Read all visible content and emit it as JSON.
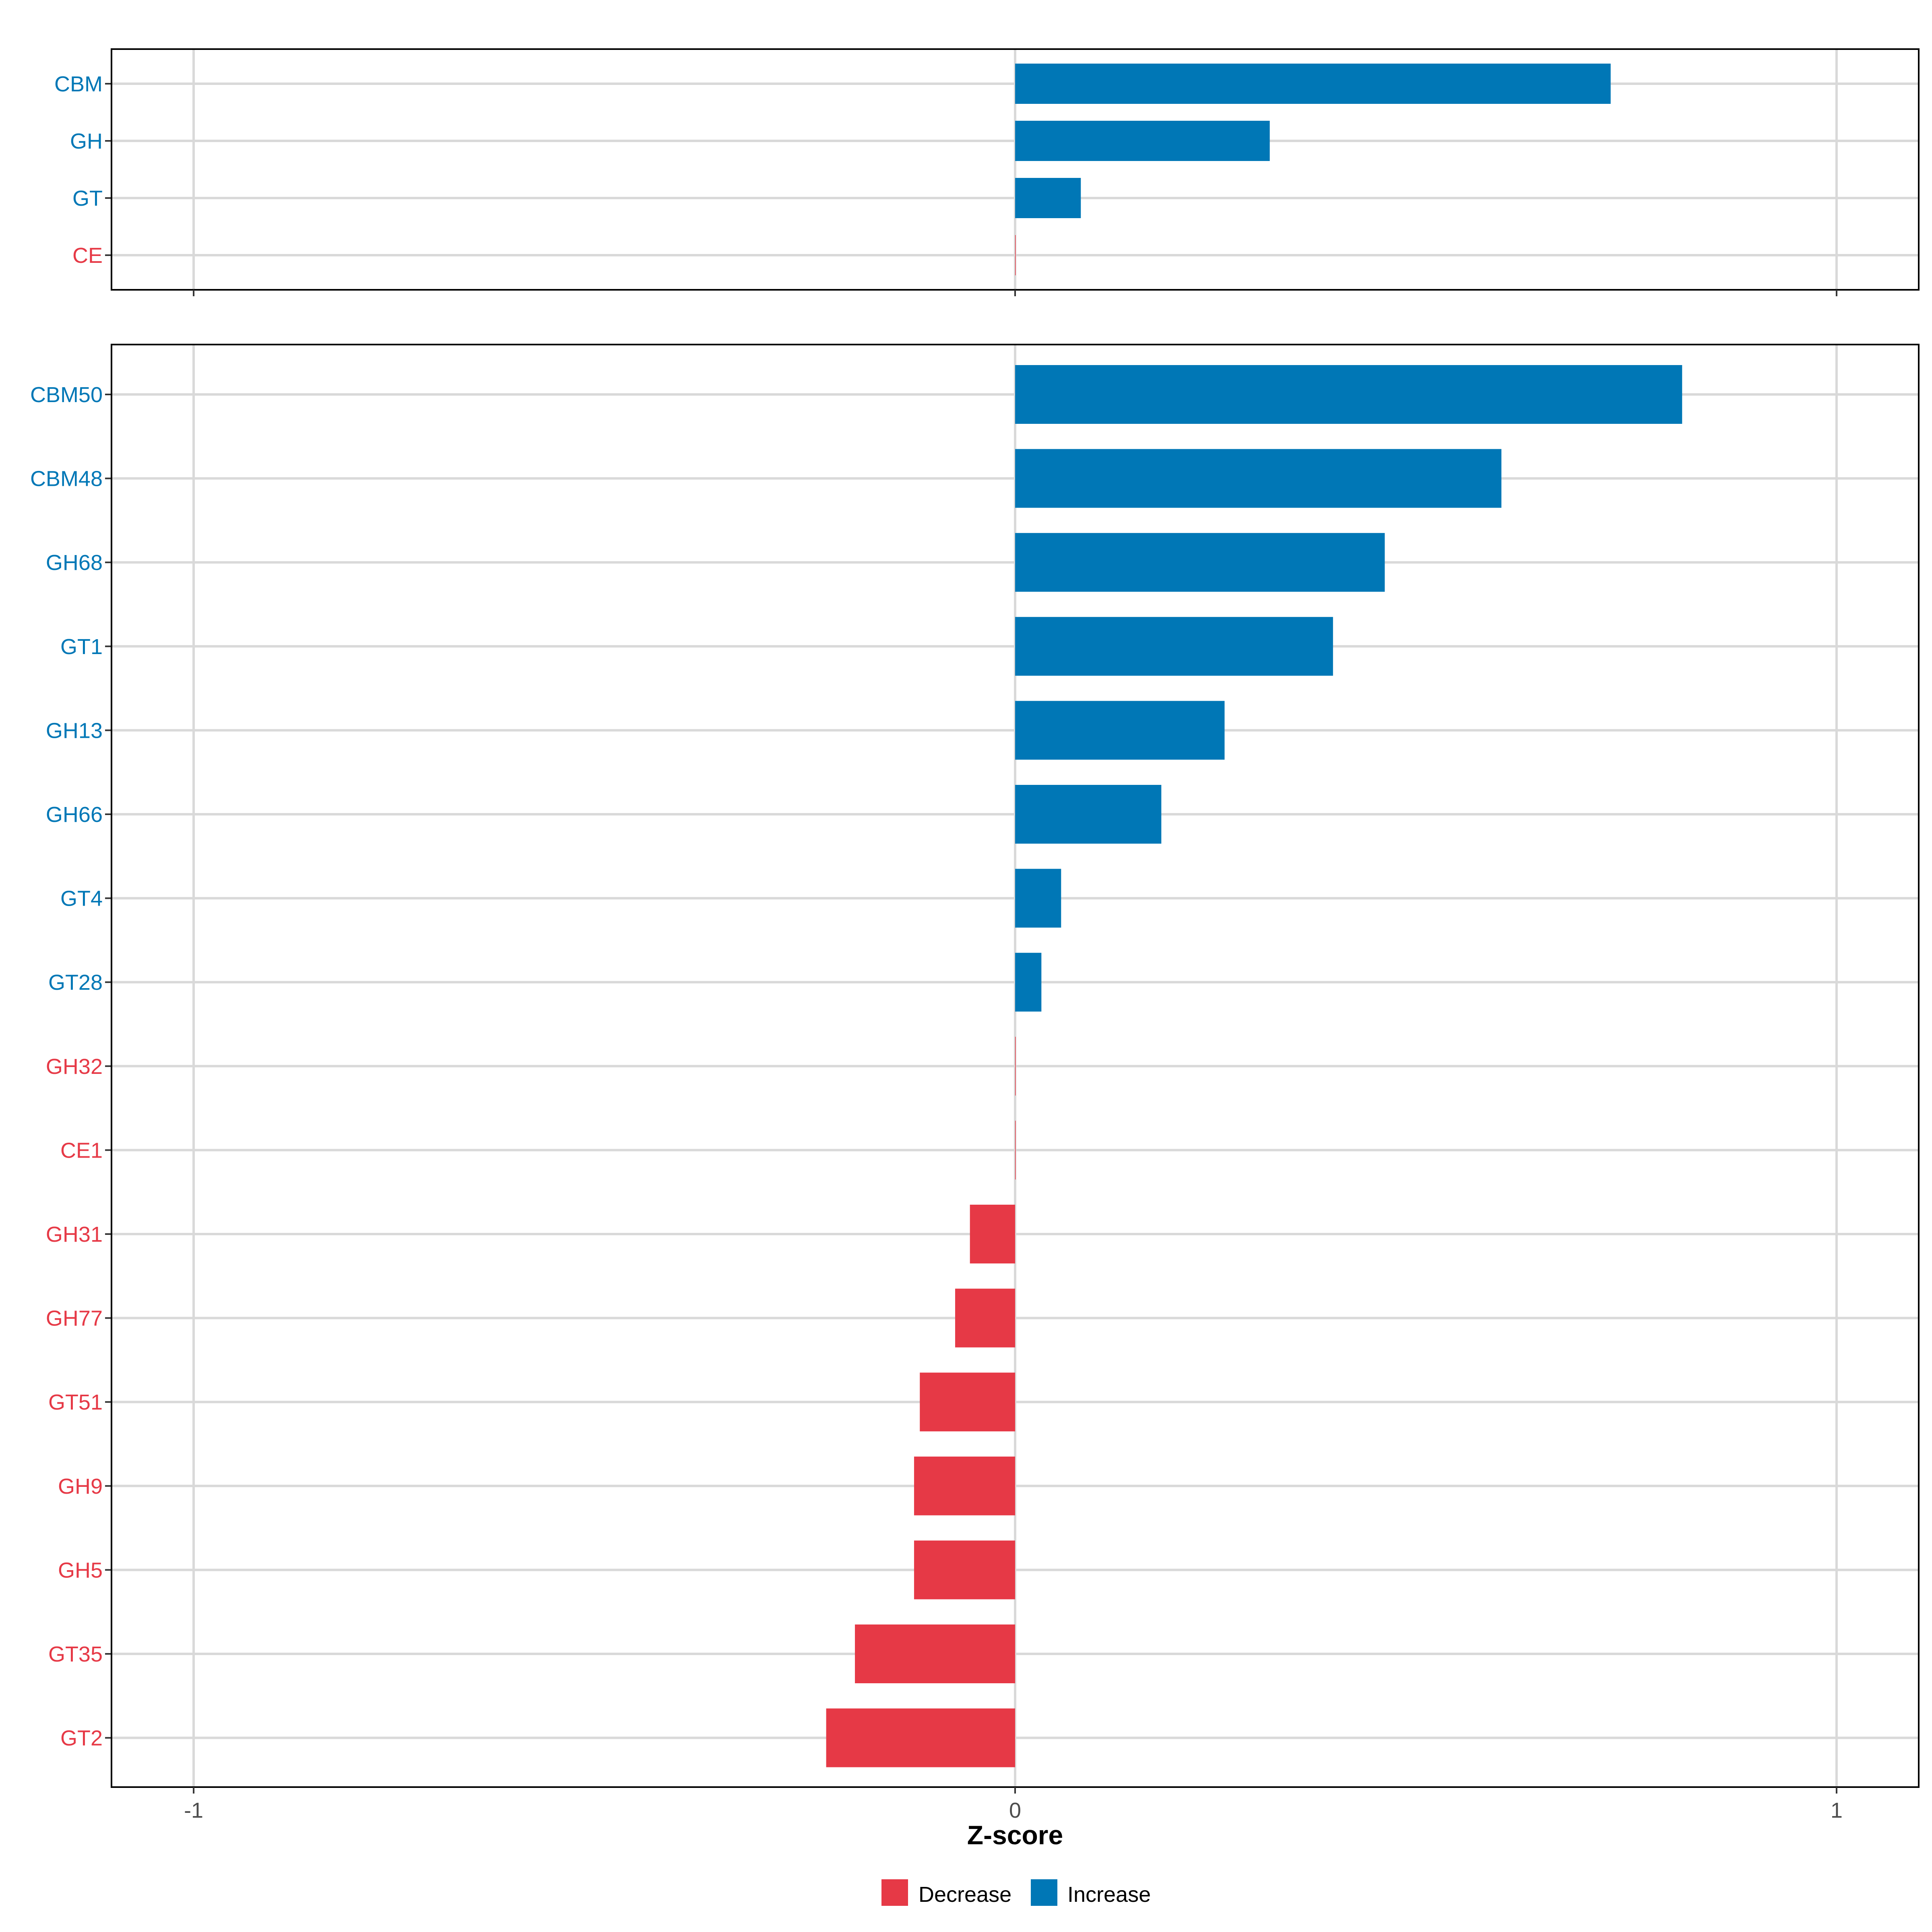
{
  "colors": {
    "increase": "#0077B6",
    "decrease": "#E63946",
    "grid": "#D9D9D9",
    "frame": "#000000",
    "tick_text": "#4D4D4D"
  },
  "chart_data": [
    {
      "type": "bar",
      "orientation": "horizontal",
      "categories": [
        "CBM",
        "GH",
        "GT",
        "CE"
      ],
      "values": [
        0.725,
        0.31,
        0.08,
        0.0
      ],
      "directions": [
        "Increase",
        "Increase",
        "Increase",
        "Decrease"
      ],
      "xlim": [
        -1.1,
        1.1
      ],
      "xticks": [
        -1,
        0,
        1
      ],
      "xtick_labels": [
        "",
        "",
        ""
      ],
      "xlabel": "",
      "grid": true
    },
    {
      "type": "bar",
      "orientation": "horizontal",
      "categories": [
        "CBM50",
        "CBM48",
        "GH68",
        "GT1",
        "GH13",
        "GH66",
        "GT4",
        "GT28",
        "GH32",
        "CE1",
        "GH31",
        "GH77",
        "GT51",
        "GH9",
        "GH5",
        "GT35",
        "GT2"
      ],
      "values": [
        0.812,
        0.592,
        0.45,
        0.387,
        0.255,
        0.178,
        0.056,
        0.032,
        0.0,
        0.0,
        -0.055,
        -0.073,
        -0.116,
        -0.123,
        -0.123,
        -0.195,
        -0.23
      ],
      "directions": [
        "Increase",
        "Increase",
        "Increase",
        "Increase",
        "Increase",
        "Increase",
        "Increase",
        "Increase",
        "Decrease",
        "Decrease",
        "Decrease",
        "Decrease",
        "Decrease",
        "Decrease",
        "Decrease",
        "Decrease",
        "Decrease"
      ],
      "xlim": [
        -1.1,
        1.1
      ],
      "xticks": [
        -1,
        0,
        1
      ],
      "xtick_labels": [
        "-1",
        "0",
        "1"
      ],
      "xlabel": "Z-score",
      "grid": true
    }
  ],
  "legend": {
    "position": "bottom",
    "items": [
      {
        "label": "Decrease",
        "color_key": "decrease"
      },
      {
        "label": "Increase",
        "color_key": "increase"
      }
    ]
  }
}
